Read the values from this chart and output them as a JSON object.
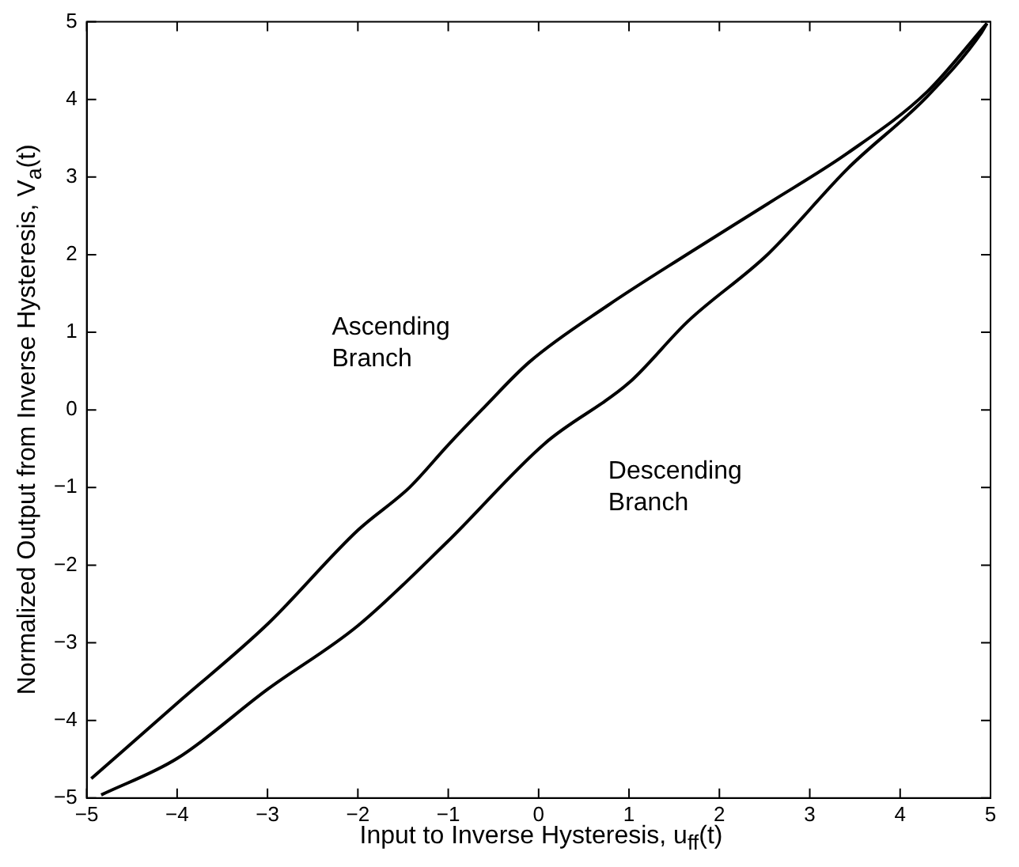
{
  "chart_data": {
    "type": "line",
    "xlabel": "Input to Inverse Hysteresis, u$_{ff}$(t)",
    "ylabel": "Normalized Output from Inverse Hysteresis, V$_{a}$(t)",
    "series": [
      {
        "name": "Ascending Branch",
        "color": "#000000",
        "x": [
          -4.95,
          -4,
          -3,
          -2,
          -1.43,
          -1,
          -0.63,
          -0.1,
          0.77,
          1.65,
          2.54,
          3.42,
          4.3,
          4.96
        ],
        "values": [
          -4.75,
          -3.78,
          -2.76,
          -1.55,
          -1,
          -0.45,
          0,
          0.62,
          1.35,
          2.01,
          2.66,
          3.31,
          4.1,
          4.98
        ]
      },
      {
        "name": "Descending Branch",
        "color": "#000000",
        "x": [
          -4.84,
          -4,
          -3,
          -2,
          -1.02,
          0.07,
          1,
          1.65,
          2.54,
          3.42,
          4.3,
          4.9,
          4.96
        ],
        "values": [
          -4.96,
          -4.49,
          -3.6,
          -2.78,
          -1.71,
          -0.43,
          0.35,
          1.14,
          2.01,
          3.11,
          4.04,
          4.86,
          4.98
        ]
      }
    ],
    "xlim": [
      -5,
      5
    ],
    "ylim": [
      -5,
      5
    ],
    "xticks": [
      -5,
      -4,
      -3,
      -2,
      -1,
      0,
      1,
      2,
      3,
      4,
      5
    ],
    "yticks": [
      -5,
      -4,
      -3,
      -2,
      -1,
      0,
      1,
      2,
      3,
      4,
      5
    ],
    "grid": false,
    "legend": false,
    "marker": "none",
    "line_style": "solid"
  }
}
